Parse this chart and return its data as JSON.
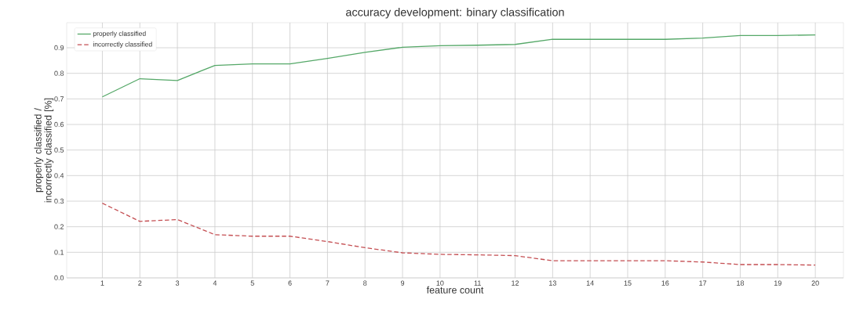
{
  "chart_data": {
    "type": "line",
    "title": "accuracy development: binary classification",
    "xlabel": "feature count",
    "ylabel": "properly classified / incorrectly  classified [%]",
    "x": [
      1,
      2,
      3,
      4,
      5,
      6,
      7,
      8,
      9,
      10,
      11,
      12,
      13,
      14,
      15,
      16,
      17,
      18,
      19,
      20
    ],
    "series": [
      {
        "name": "properly classified",
        "color": "#55a868",
        "line_style": "solid",
        "values": [
          0.708,
          0.779,
          0.772,
          0.831,
          0.837,
          0.837,
          0.858,
          0.882,
          0.902,
          0.908,
          0.91,
          0.913,
          0.933,
          0.933,
          0.933,
          0.933,
          0.938,
          0.948,
          0.948,
          0.95
        ]
      },
      {
        "name": "incorrectly classified",
        "color": "#c44e52",
        "line_style": "dashed",
        "values": [
          0.292,
          0.221,
          0.228,
          0.169,
          0.163,
          0.163,
          0.142,
          0.118,
          0.098,
          0.092,
          0.09,
          0.087,
          0.067,
          0.067,
          0.067,
          0.067,
          0.062,
          0.052,
          0.052,
          0.05
        ]
      }
    ],
    "xlim": [
      0.05,
      20.75
    ],
    "ylim": [
      0,
      0.998
    ],
    "xticks": [
      1,
      2,
      3,
      4,
      5,
      6,
      7,
      8,
      9,
      10,
      11,
      12,
      13,
      14,
      15,
      16,
      17,
      18,
      19,
      20
    ],
    "yticks": [
      {
        "value": 0,
        "label": "0.0"
      },
      0.1,
      0.2,
      0.3,
      0.4,
      0.5,
      0.6,
      0.7,
      0.8,
      0.9
    ],
    "grid": true,
    "legend": "top left",
    "marker": "none"
  }
}
